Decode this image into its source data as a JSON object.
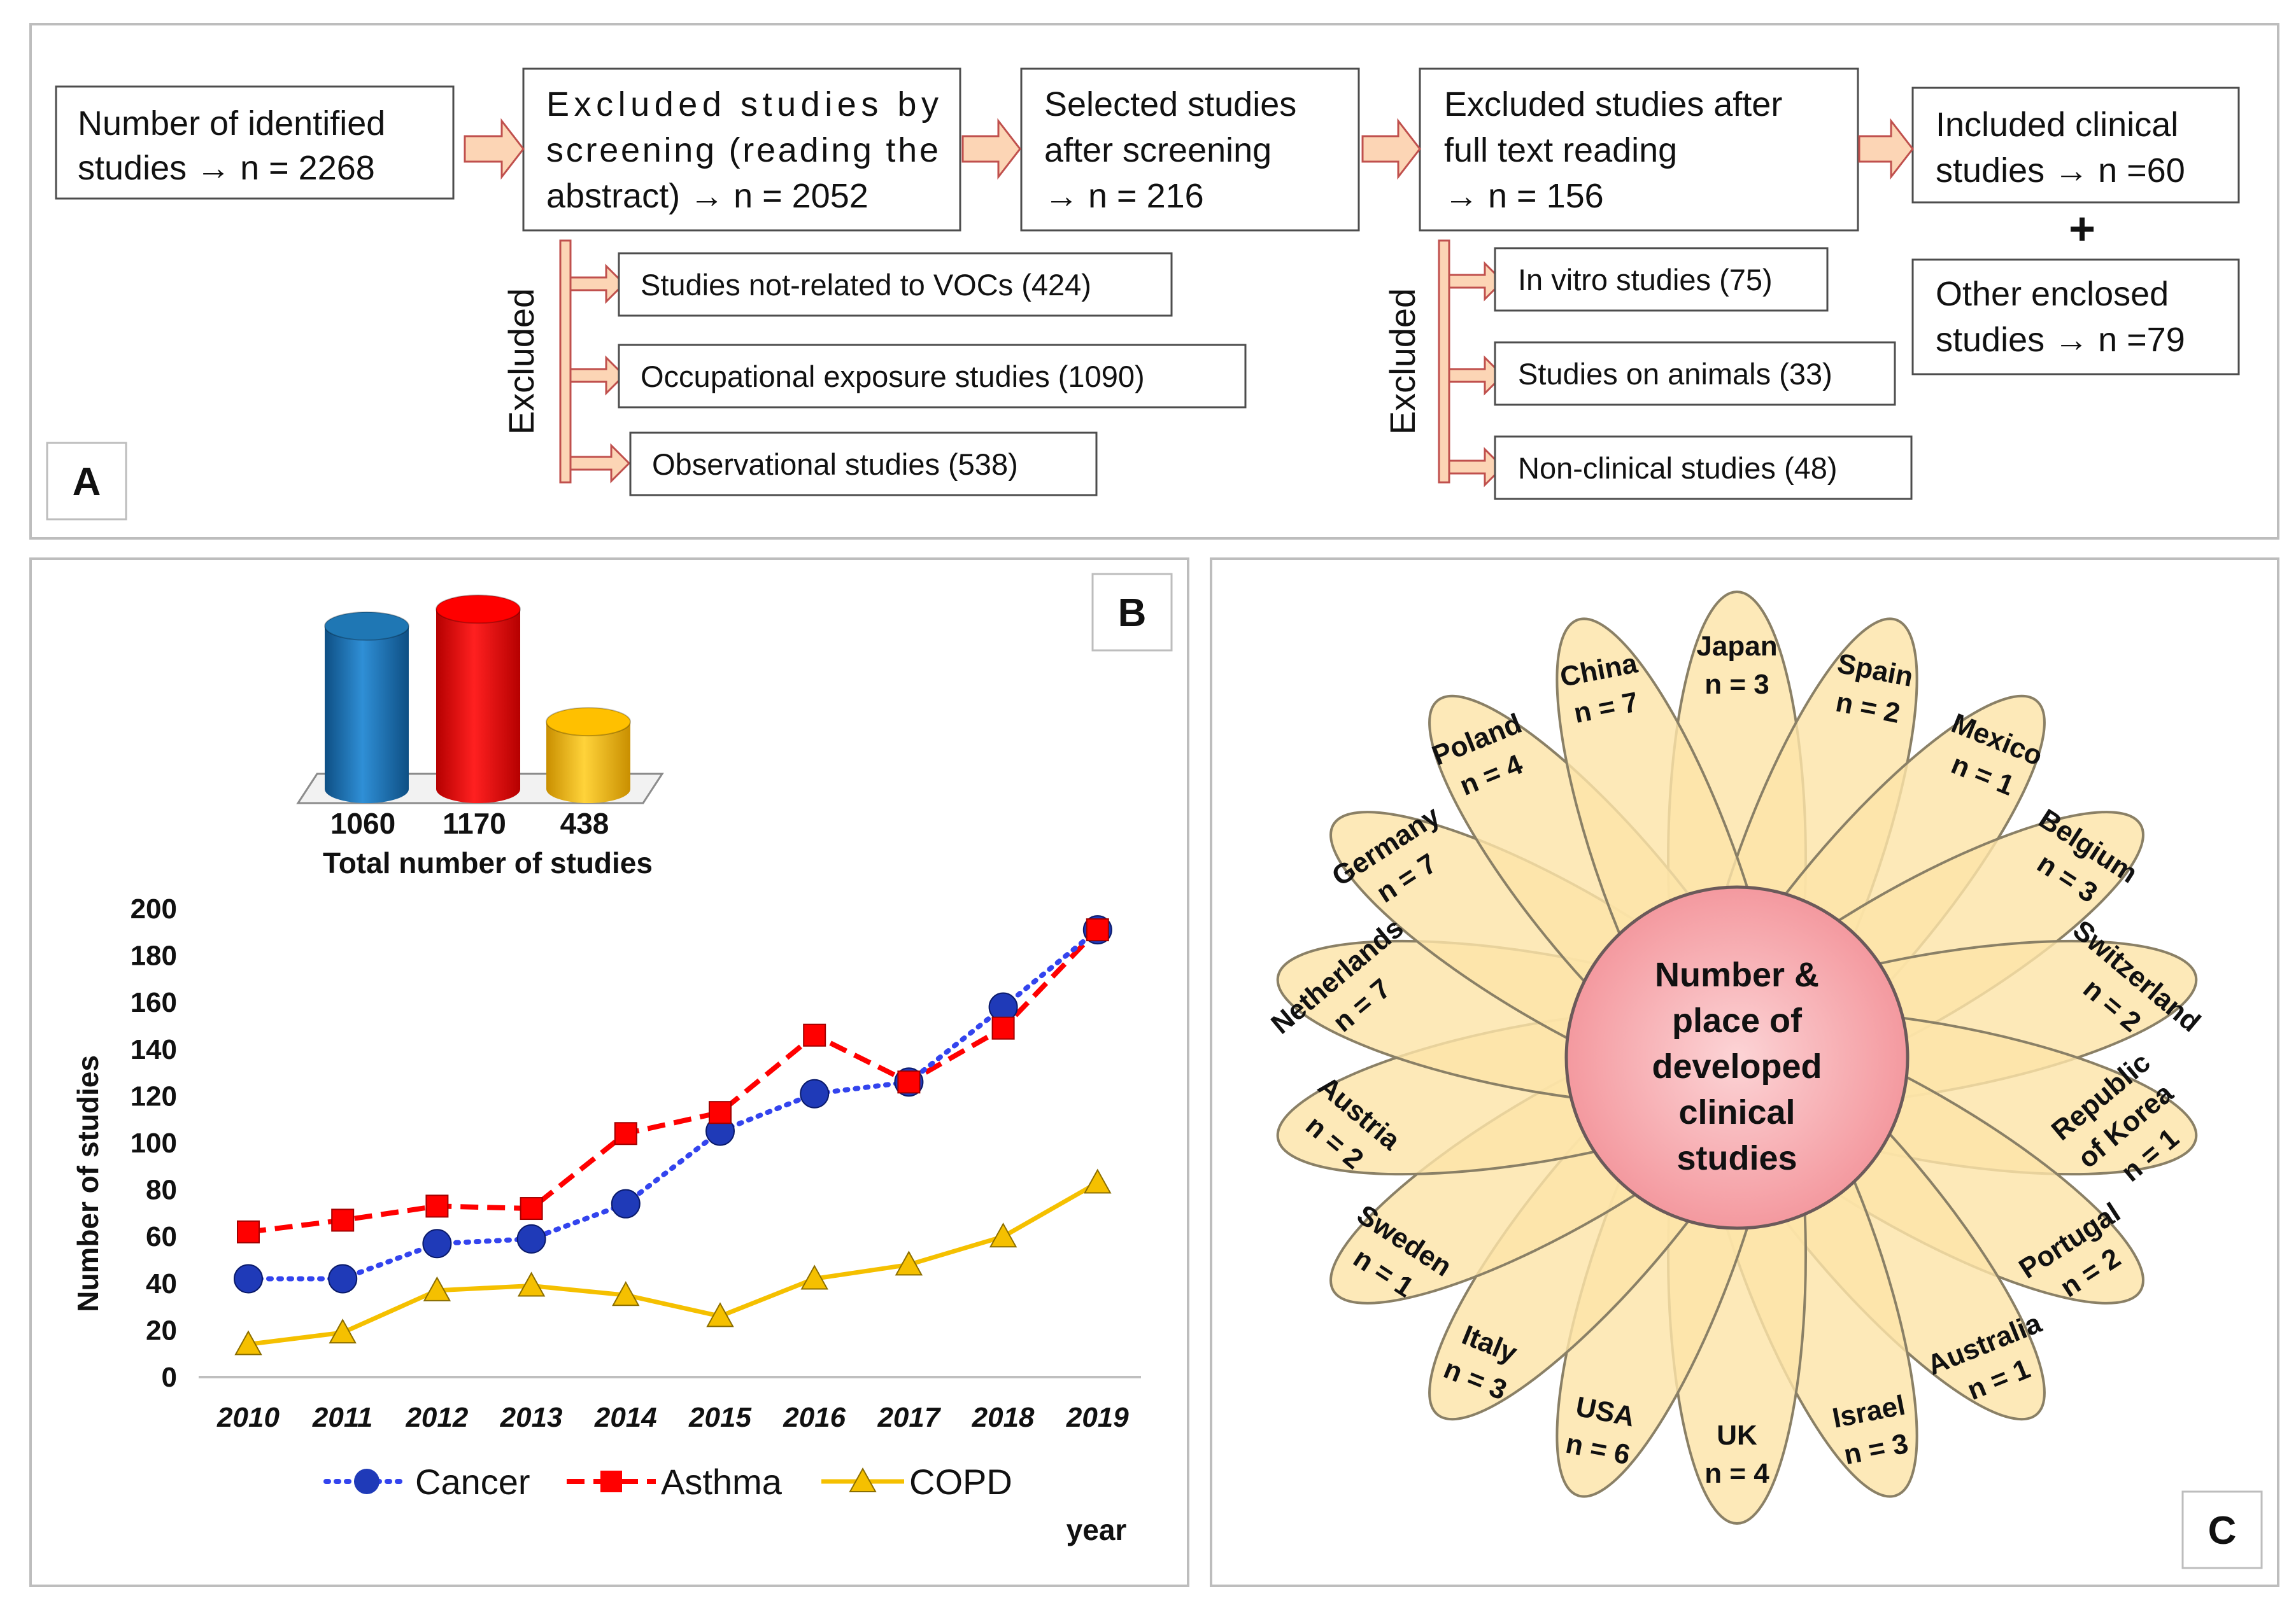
{
  "panels": {
    "a": "A",
    "b": "B",
    "c": "C"
  },
  "flowchart": {
    "identified": [
      "Number of identified",
      "studies → n = 2268"
    ],
    "excluded_screening": [
      "Excluded studies by",
      "screening (reading the",
      "abstract) → n = 2052"
    ],
    "selected": [
      "Selected studies",
      "after screening",
      "→ n = 216"
    ],
    "excluded_fulltext": [
      "Excluded studies after",
      "full text reading",
      "→ n = 156"
    ],
    "included": [
      "Included clinical",
      "studies → n =60"
    ],
    "plus": "+",
    "other": [
      "Other enclosed",
      "studies → n =79"
    ],
    "excluded_label": "Excluded",
    "left_branches": [
      "Studies not-related to VOCs (424)",
      "Occupational exposure studies (1090)",
      "Observational studies (538)"
    ],
    "right_branches": [
      "In vitro studies (75)",
      "Studies on animals (33)",
      "Non-clinical studies (48)"
    ]
  },
  "colors": {
    "cancer": "#1f3ab8",
    "cancer_line": "#3344ee",
    "asthma": "#ff0000",
    "copd": "#f5c000",
    "bar_blue": "#1f77b4",
    "bar_red": "#ff0000",
    "bar_yellow": "#ffc000",
    "petal_fill": "#fde4a8",
    "petal_stroke": "#8a8066",
    "center_fill": "#f7a8ad",
    "arrow_fill": "#fcd5b5",
    "arrow_stroke": "#c0504d"
  },
  "chart_data": [
    {
      "type": "bar",
      "title": "Total number of studies",
      "categories": [
        "Cancer",
        "Asthma",
        "COPD"
      ],
      "values": [
        1060,
        1170,
        438
      ],
      "value_labels": [
        "1060",
        "1170",
        "438"
      ],
      "style": "3d-cylinder"
    },
    {
      "type": "line",
      "x": [
        "2010",
        "2011",
        "2012",
        "2013",
        "2014",
        "2015",
        "2016",
        "2017",
        "2018",
        "2019"
      ],
      "series": [
        {
          "name": "Cancer",
          "values": [
            42,
            42,
            57,
            59,
            74,
            105,
            121,
            126,
            158,
            191
          ]
        },
        {
          "name": "Asthma",
          "values": [
            62,
            67,
            73,
            72,
            104,
            113,
            146,
            126,
            149,
            191
          ]
        },
        {
          "name": "COPD",
          "values": [
            14,
            19,
            37,
            39,
            35,
            26,
            42,
            48,
            60,
            83
          ]
        }
      ],
      "xlabel": "year",
      "ylabel": "Number of studies",
      "ylim": [
        0,
        200
      ],
      "yticks": [
        "0",
        "20",
        "40",
        "60",
        "80",
        "100",
        "120",
        "140",
        "160",
        "180",
        "200"
      ],
      "legend": [
        "Cancer",
        "Asthma",
        "COPD"
      ],
      "legend_position": "bottom"
    },
    {
      "type": "flower-infographic",
      "center": [
        "Number &",
        "place of",
        "developed",
        "clinical",
        "studies"
      ],
      "countries": [
        {
          "name": "Japan",
          "n": "n = 3"
        },
        {
          "name": "Spain",
          "n": "n = 2"
        },
        {
          "name": "Mexico",
          "n": "n = 1"
        },
        {
          "name": "Belgium",
          "n": "n = 3"
        },
        {
          "name": "Switzerland",
          "n": "n = 2"
        },
        {
          "name": "Republic of Korea",
          "n": "n = 1"
        },
        {
          "name": "Portugal",
          "n": "n = 2"
        },
        {
          "name": "Australia",
          "n": "n = 1"
        },
        {
          "name": "Israel",
          "n": "n = 3"
        },
        {
          "name": "UK",
          "n": "n = 4"
        },
        {
          "name": "USA",
          "n": "n = 6"
        },
        {
          "name": "Italy",
          "n": "n = 3"
        },
        {
          "name": "Sweden",
          "n": "n = 1"
        },
        {
          "name": "Austria",
          "n": "n = 2"
        },
        {
          "name": "Netherlands",
          "n": "n = 7"
        },
        {
          "name": "Germany",
          "n": "n = 7"
        },
        {
          "name": "Poland",
          "n": "n = 4"
        },
        {
          "name": "China",
          "n": "n = 7"
        }
      ]
    }
  ]
}
